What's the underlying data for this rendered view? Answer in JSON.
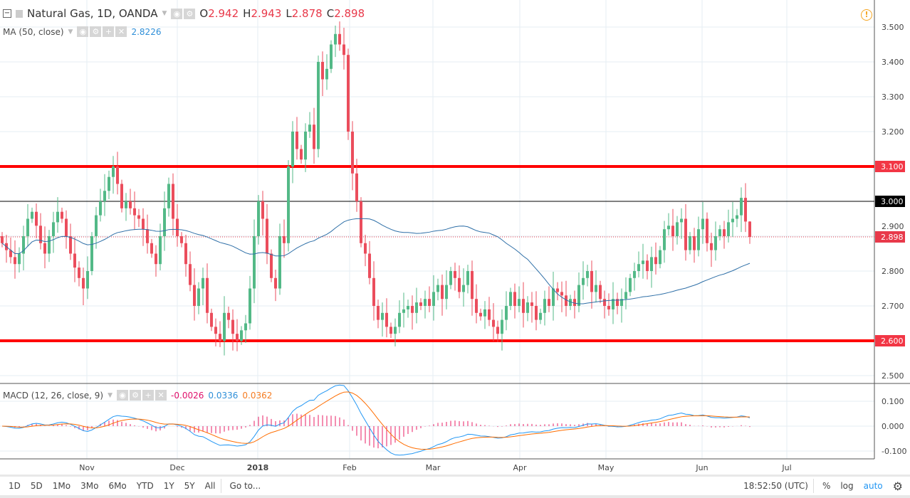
{
  "header": {
    "symbol": "Natural Gas, 1D, OANDA",
    "open_label": "O",
    "open": "2.942",
    "high_label": "H",
    "high": "2.943",
    "low_label": "L",
    "low": "2.878",
    "close_label": "C",
    "close": "2.898"
  },
  "ma": {
    "label": "MA (50, close)",
    "value": "2.8226"
  },
  "macd": {
    "label": "MACD (12, 26, close, 9)",
    "hist": "-0.0026",
    "macd": "0.0336",
    "signal": "0.0362"
  },
  "price_axis": {
    "ticks": [
      "3.500",
      "3.400",
      "3.300",
      "3.200",
      "3.100",
      "3.000",
      "2.900",
      "2.800",
      "2.700",
      "2.600",
      "2.500"
    ],
    "tick_values": [
      3.5,
      3.4,
      3.3,
      3.2,
      3.1,
      3.0,
      2.9,
      2.8,
      2.7,
      2.6,
      2.5
    ],
    "markers": [
      {
        "label": "3.100",
        "value": 3.1,
        "color": "#f23645"
      },
      {
        "label": "3.000",
        "value": 3.0,
        "color": "#000000"
      },
      {
        "label": "2.898",
        "value": 2.898,
        "color": "#e8394a"
      },
      {
        "label": "2.600",
        "value": 2.6,
        "color": "#f23645"
      }
    ]
  },
  "macd_axis": {
    "ticks": [
      "0.100",
      "0.000",
      "-0.100"
    ],
    "tick_values": [
      0.1,
      0,
      -0.1
    ]
  },
  "time_axis": [
    "Nov",
    "Dec",
    "2018",
    "Feb",
    "Mar",
    "Apr",
    "May",
    "Jun",
    "Jul"
  ],
  "horizontal_lines": [
    {
      "value": 3.1,
      "color": "#ff0000"
    },
    {
      "value": 2.6,
      "color": "#ff0000"
    },
    {
      "value": 3.0,
      "color": "#000000"
    }
  ],
  "colors": {
    "up": "#53b987",
    "down": "#eb4d5c",
    "ma": "#2e6fa7",
    "macd": "#2196f3",
    "signal": "#ff6d00",
    "hist": "#e91e63"
  },
  "toolbar": {
    "ranges": [
      "1D",
      "5D",
      "1Mo",
      "3Mo",
      "6Mo",
      "YTD",
      "1Y",
      "5Y",
      "All"
    ],
    "goto": "Go to...",
    "time": "18:52:50 (UTC)",
    "percent": "%",
    "log": "log",
    "auto": "auto"
  },
  "chart_data": {
    "type": "candlestick",
    "last_open": 2.942,
    "last_high": 2.943,
    "last_low": 2.878,
    "closes": [
      2.88,
      2.86,
      2.84,
      2.82,
      2.85,
      2.9,
      2.95,
      2.97,
      2.93,
      2.88,
      2.85,
      2.9,
      2.94,
      2.97,
      2.95,
      2.9,
      2.85,
      2.81,
      2.78,
      2.75,
      2.8,
      2.9,
      2.96,
      3.0,
      3.03,
      3.07,
      3.1,
      3.05,
      2.98,
      3.0,
      2.98,
      2.96,
      2.95,
      2.92,
      2.88,
      2.85,
      2.82,
      2.9,
      2.98,
      3.05,
      2.95,
      2.9,
      2.88,
      2.82,
      2.76,
      2.7,
      2.75,
      2.78,
      2.68,
      2.64,
      2.62,
      2.6,
      2.68,
      2.66,
      2.62,
      2.6,
      2.63,
      2.65,
      2.75,
      2.9,
      3.0,
      2.95,
      2.85,
      2.78,
      2.75,
      2.9,
      2.88,
      3.1,
      3.2,
      3.15,
      3.12,
      3.2,
      3.22,
      3.15,
      3.4,
      3.35,
      3.38,
      3.45,
      3.48,
      3.45,
      3.42,
      3.2,
      3.08,
      3.0,
      2.88,
      2.85,
      2.78,
      2.7,
      2.66,
      2.68,
      2.64,
      2.62,
      2.64,
      2.68,
      2.69,
      2.7,
      2.68,
      2.71,
      2.7,
      2.72,
      2.7,
      2.74,
      2.76,
      2.72,
      2.76,
      2.8,
      2.78,
      2.74,
      2.76,
      2.8,
      2.72,
      2.68,
      2.67,
      2.69,
      2.66,
      2.64,
      2.62,
      2.66,
      2.7,
      2.74,
      2.7,
      2.72,
      2.68,
      2.71,
      2.7,
      2.66,
      2.68,
      2.72,
      2.7,
      2.75,
      2.74,
      2.73,
      2.7,
      2.72,
      2.7,
      2.76,
      2.78,
      2.8,
      2.74,
      2.76,
      2.72,
      2.7,
      2.69,
      2.72,
      2.7,
      2.72,
      2.74,
      2.78,
      2.8,
      2.82,
      2.83,
      2.8,
      2.84,
      2.82,
      2.86,
      2.92,
      2.93,
      2.9,
      2.94,
      2.95,
      2.86,
      2.9,
      2.86,
      2.92,
      2.95,
      2.88,
      2.86,
      2.9,
      2.92,
      2.9,
      2.94,
      2.95,
      2.96,
      3.01,
      2.942,
      2.898
    ],
    "ylim": [
      2.47,
      3.56
    ]
  }
}
